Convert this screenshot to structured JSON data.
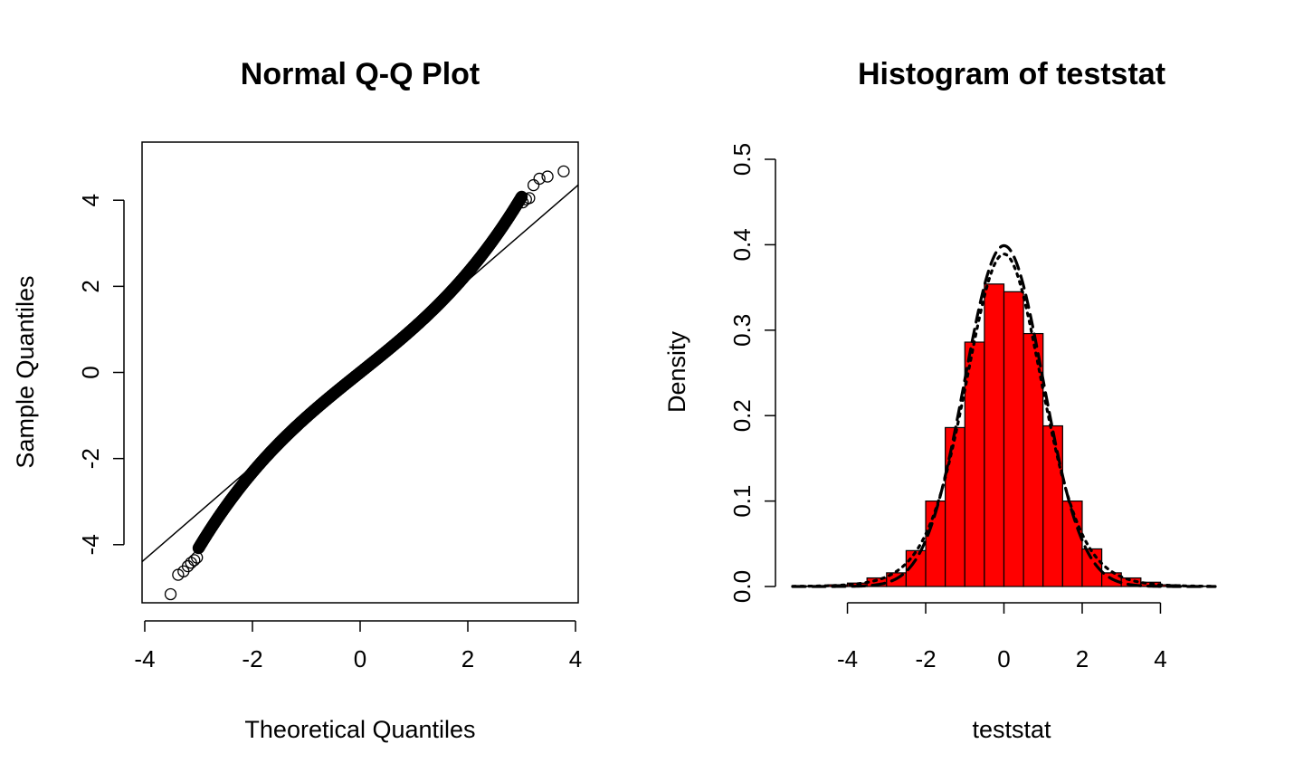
{
  "chart_data": [
    {
      "type": "scatter",
      "title": "Normal Q-Q Plot",
      "xlabel": "Theoretical Quantiles",
      "ylabel": "Sample Quantiles",
      "xlim": [
        -4.05,
        4.05
      ],
      "ylim": [
        -5.35,
        5.35
      ],
      "xticks": [
        -4,
        -2,
        0,
        2,
        4
      ],
      "yticks": [
        -4,
        -2,
        0,
        2,
        4
      ],
      "xtick_labels": [
        "-4",
        "-2",
        "0",
        "2",
        "4"
      ],
      "ytick_labels": [
        "-4",
        "-2",
        "0",
        "2",
        "4"
      ],
      "reference_line": {
        "intercept": -0.02,
        "slope": 1.08
      },
      "tail_points": [
        {
          "x": -3.52,
          "y": -5.15
        },
        {
          "x": -3.38,
          "y": -4.7
        },
        {
          "x": -3.28,
          "y": -4.62
        },
        {
          "x": -3.2,
          "y": -4.5
        },
        {
          "x": -3.14,
          "y": -4.42
        },
        {
          "x": -3.08,
          "y": -4.36
        },
        {
          "x": -3.03,
          "y": -4.3
        },
        {
          "x": 3.02,
          "y": 3.95
        },
        {
          "x": 3.08,
          "y": 4.02
        },
        {
          "x": 3.14,
          "y": 4.05
        },
        {
          "x": 3.22,
          "y": 4.35
        },
        {
          "x": 3.33,
          "y": 4.5
        },
        {
          "x": 3.48,
          "y": 4.55
        },
        {
          "x": 3.78,
          "y": 4.67
        }
      ],
      "curve": {
        "x_range": [
          -3.0,
          3.0
        ],
        "slope": 1.0,
        "tail_weight": 0.04
      },
      "point_style": "open-circle",
      "box": true
    },
    {
      "type": "bar",
      "title": "Histogram of teststat",
      "xlabel": "teststat",
      "ylabel": "Density",
      "xlim": [
        -5.4,
        5.4
      ],
      "ylim": [
        0,
        0.5
      ],
      "xticks": [
        -4,
        -2,
        0,
        2,
        4
      ],
      "yticks": [
        0.0,
        0.1,
        0.2,
        0.3,
        0.4,
        0.5
      ],
      "xtick_labels": [
        "-4",
        "-2",
        "0",
        "2",
        "4"
      ],
      "ytick_labels": [
        "0.0",
        "0.1",
        "0.2",
        "0.3",
        "0.4",
        "0.5"
      ],
      "bin_edges": [
        -5.5,
        -5.0,
        -4.5,
        -4.0,
        -3.5,
        -3.0,
        -2.5,
        -2.0,
        -1.5,
        -1.0,
        -0.5,
        0.0,
        0.5,
        1.0,
        1.5,
        2.0,
        2.5,
        3.0,
        3.5,
        4.0,
        4.5,
        5.0,
        5.5
      ],
      "values": [
        0.0005,
        0.001,
        0.002,
        0.004,
        0.01,
        0.016,
        0.042,
        0.1,
        0.186,
        0.286,
        0.354,
        0.345,
        0.296,
        0.188,
        0.1,
        0.044,
        0.016,
        0.01,
        0.005,
        0.002,
        0.001,
        0.0005
      ],
      "bar_color": "#ff0000",
      "overlay_curves": [
        {
          "style": "dashed",
          "dist": "normal",
          "sd": 1.0
        },
        {
          "style": "dotted",
          "dist": "t",
          "df": 10
        }
      ]
    }
  ]
}
